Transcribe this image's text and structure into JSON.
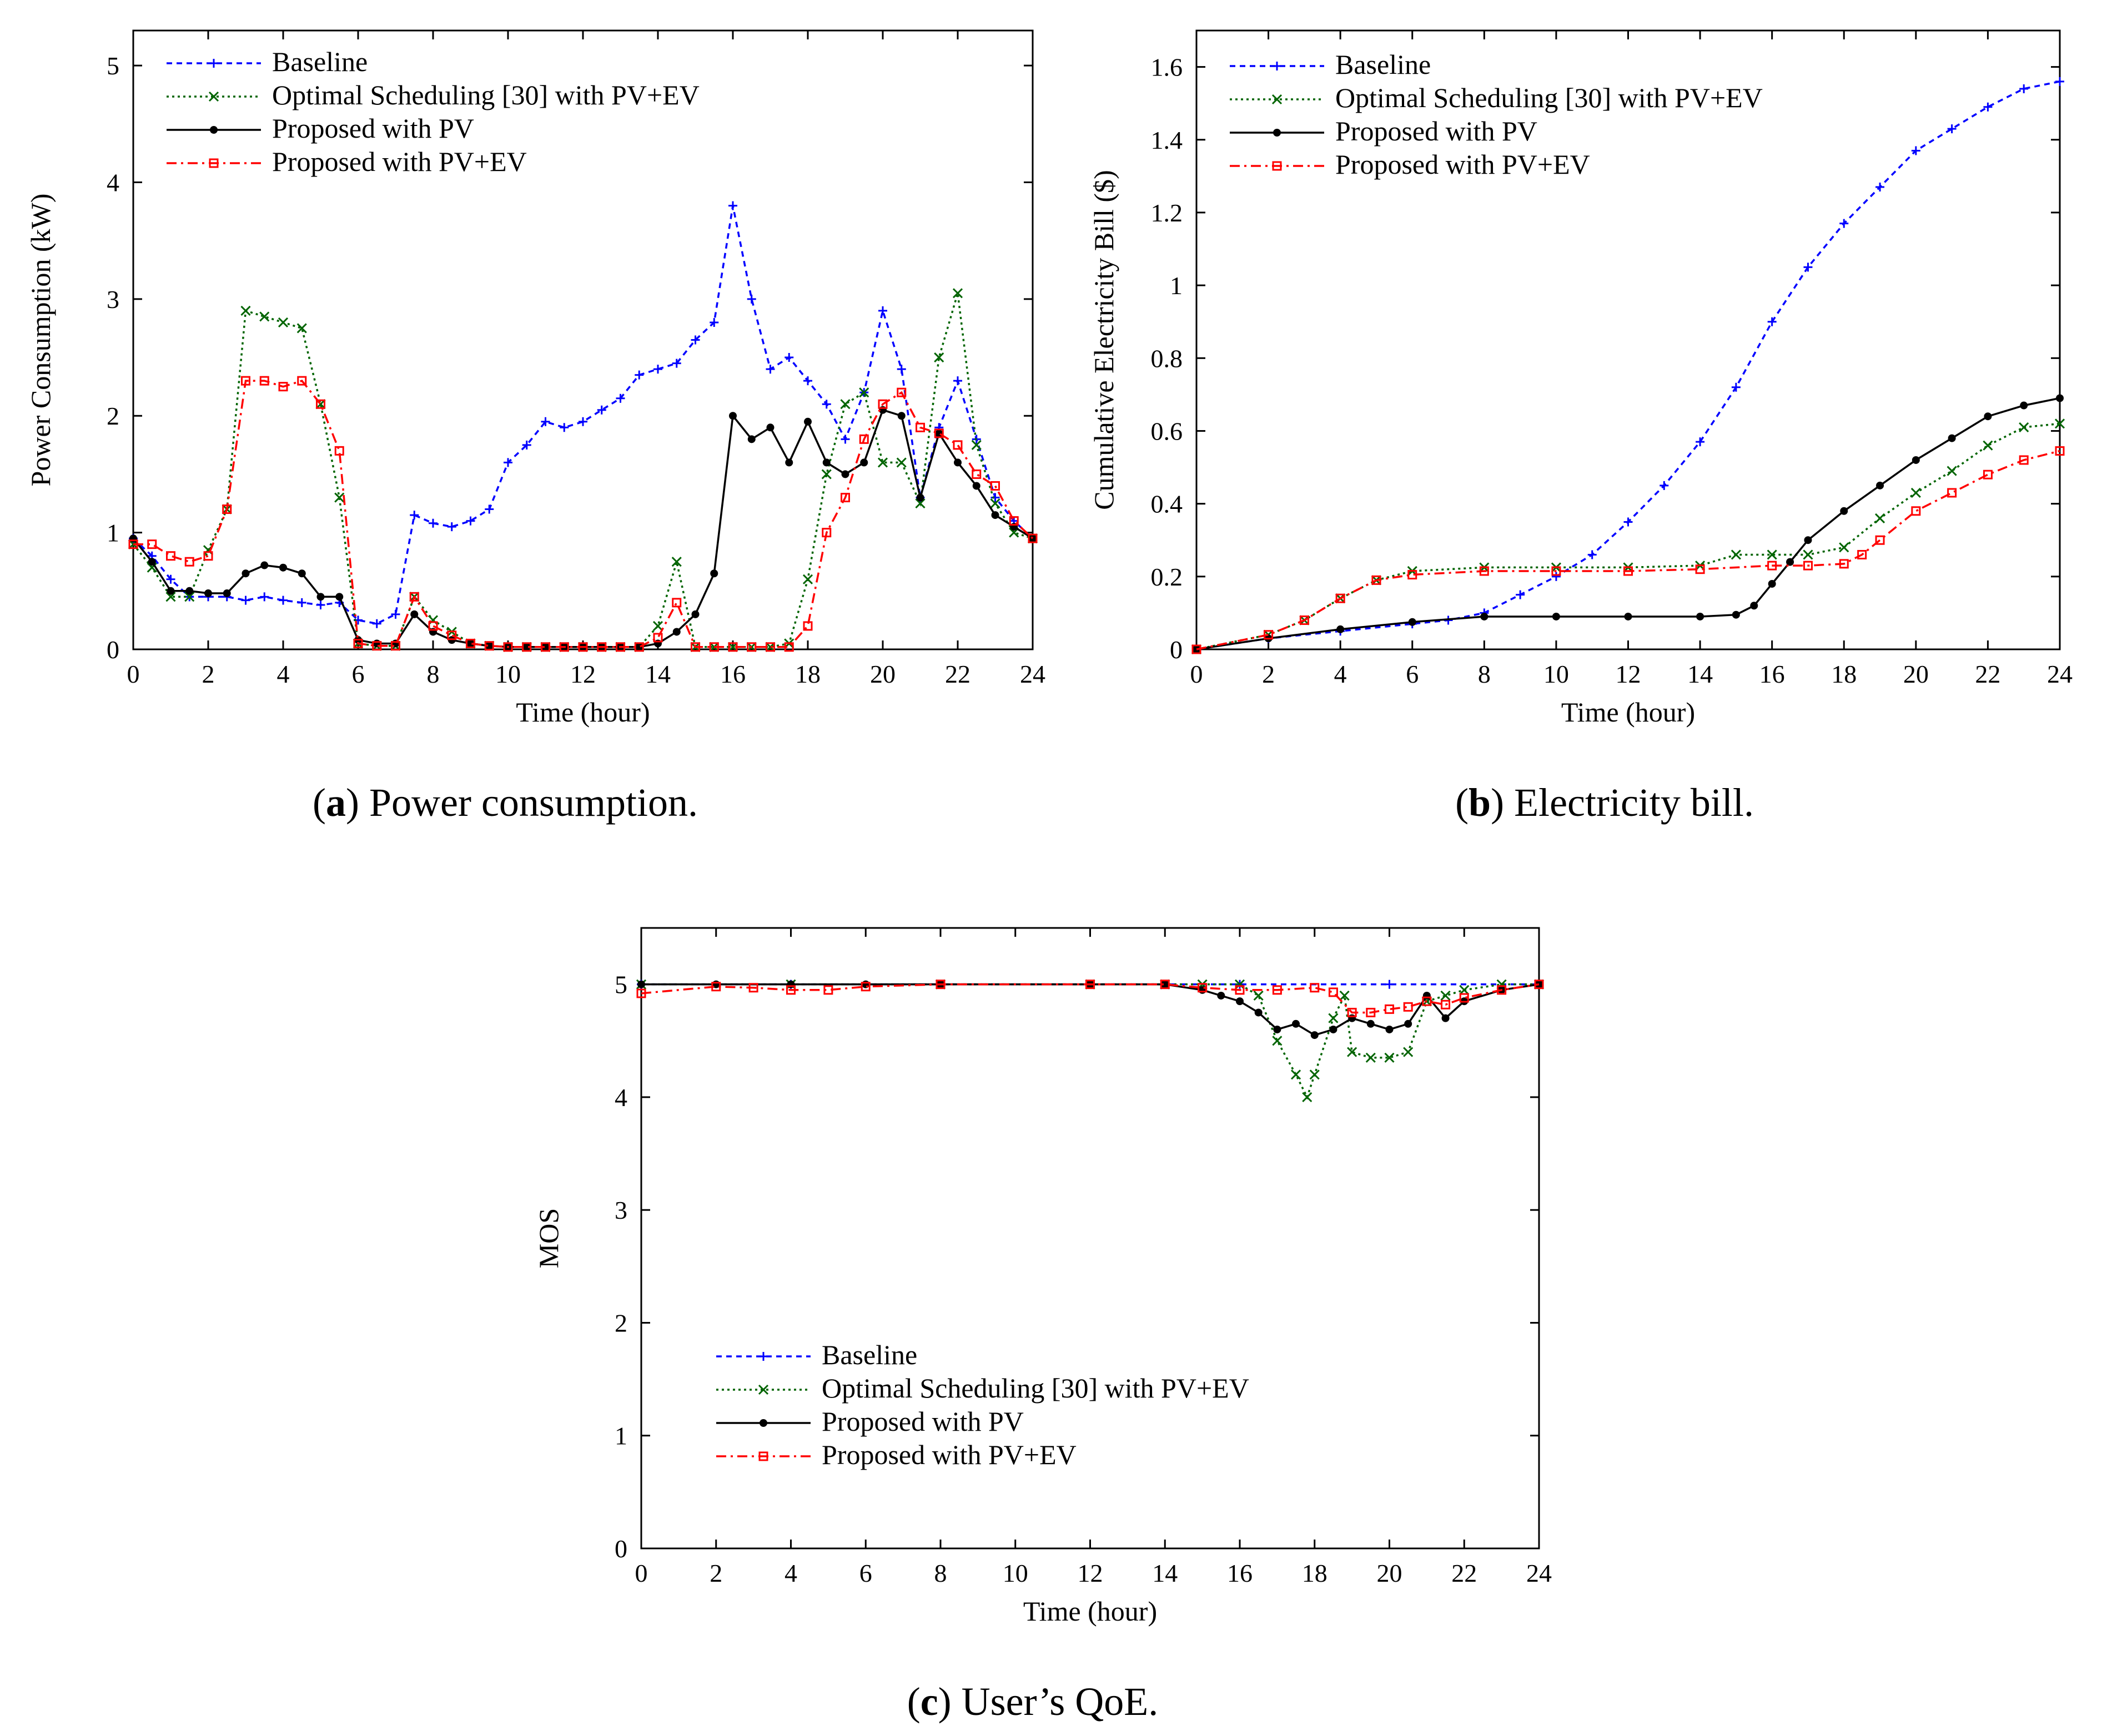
{
  "figure": {
    "captions": [
      {
        "letter": "a",
        "text": " Power consumption.",
        "open": "(",
        "close": ")"
      },
      {
        "letter": "b",
        "text": " Electricity bill.",
        "open": "(",
        "close": ")"
      },
      {
        "letter": "c",
        "text": " User’s QoE.",
        "open": "(",
        "close": ")"
      }
    ]
  },
  "chart_data": [
    {
      "id": "a",
      "type": "line",
      "xlabel": "Time (hour)",
      "ylabel": "Power Consumption (kW)",
      "xlim": [
        0,
        24
      ],
      "ylim": [
        0,
        5.3
      ],
      "xticks": [
        0,
        2,
        4,
        6,
        8,
        10,
        12,
        14,
        16,
        18,
        20,
        22,
        24
      ],
      "yticks": [
        0,
        1,
        2,
        3,
        4,
        5
      ],
      "legend_position": "top-left",
      "series": [
        {
          "name": "Baseline",
          "color": "#0000ff",
          "marker": "plus",
          "x": [
            0,
            0.5,
            1,
            1.5,
            2,
            2.5,
            3,
            3.5,
            4,
            4.5,
            5,
            5.5,
            6,
            6.5,
            7,
            7.5,
            8,
            8.5,
            9,
            9.5,
            10,
            10.5,
            11,
            11.5,
            12,
            12.5,
            13,
            13.5,
            14,
            14.5,
            15,
            15.5,
            16,
            16.5,
            17,
            17.5,
            18,
            18.5,
            19,
            19.5,
            20,
            20.5,
            21,
            21.5,
            22,
            22.5,
            23,
            23.5,
            24
          ],
          "values": [
            0.95,
            0.8,
            0.6,
            0.45,
            0.45,
            0.45,
            0.42,
            0.45,
            0.42,
            0.4,
            0.38,
            0.4,
            0.25,
            0.22,
            0.3,
            1.15,
            1.08,
            1.05,
            1.1,
            1.2,
            1.6,
            1.75,
            1.95,
            1.9,
            1.95,
            2.05,
            2.15,
            2.35,
            2.4,
            2.45,
            2.65,
            2.8,
            3.8,
            3.0,
            2.4,
            2.5,
            2.3,
            2.1,
            1.8,
            2.2,
            2.9,
            2.4,
            1.3,
            1.9,
            2.3,
            1.8,
            1.3,
            1.1,
            0.95
          ]
        },
        {
          "name": "Optimal Scheduling [30] with PV+EV",
          "color": "#006400",
          "marker": "x",
          "x": [
            0,
            0.5,
            1,
            1.5,
            2,
            2.5,
            3,
            3.5,
            4,
            4.5,
            5,
            5.5,
            6,
            6.5,
            7,
            7.5,
            8,
            8.5,
            9,
            9.5,
            10,
            10.5,
            11,
            11.5,
            12,
            12.5,
            13,
            13.5,
            14,
            14.5,
            15,
            15.5,
            16,
            16.5,
            17,
            17.5,
            18,
            18.5,
            19,
            19.5,
            20,
            20.5,
            21,
            21.5,
            22,
            22.5,
            23,
            23.5,
            24
          ],
          "values": [
            0.9,
            0.7,
            0.45,
            0.45,
            0.85,
            1.2,
            2.9,
            2.85,
            2.8,
            2.75,
            2.1,
            1.3,
            0.05,
            0.03,
            0.03,
            0.45,
            0.25,
            0.15,
            0.05,
            0.03,
            0.02,
            0.02,
            0.02,
            0.02,
            0.02,
            0.02,
            0.02,
            0.02,
            0.2,
            0.75,
            0.02,
            0.02,
            0.02,
            0.02,
            0.02,
            0.05,
            0.6,
            1.5,
            2.1,
            2.2,
            1.6,
            1.6,
            1.25,
            2.5,
            3.05,
            1.75,
            1.25,
            1.0,
            0.95
          ]
        },
        {
          "name": "Proposed with PV",
          "color": "#000000",
          "marker": "circle",
          "x": [
            0,
            0.5,
            1,
            1.5,
            2,
            2.5,
            3,
            3.5,
            4,
            4.5,
            5,
            5.5,
            6,
            6.5,
            7,
            7.5,
            8,
            8.5,
            9,
            9.5,
            10,
            10.5,
            11,
            11.5,
            12,
            12.5,
            13,
            13.5,
            14,
            14.5,
            15,
            15.5,
            16,
            16.5,
            17,
            17.5,
            18,
            18.5,
            19,
            19.5,
            20,
            20.5,
            21,
            21.5,
            22,
            22.5,
            23,
            23.5,
            24
          ],
          "values": [
            0.95,
            0.75,
            0.5,
            0.5,
            0.48,
            0.48,
            0.65,
            0.72,
            0.7,
            0.65,
            0.45,
            0.45,
            0.08,
            0.05,
            0.05,
            0.3,
            0.15,
            0.08,
            0.05,
            0.03,
            0.02,
            0.02,
            0.02,
            0.02,
            0.02,
            0.02,
            0.02,
            0.02,
            0.05,
            0.15,
            0.3,
            0.65,
            2.0,
            1.8,
            1.9,
            1.6,
            1.95,
            1.6,
            1.5,
            1.6,
            2.05,
            2.0,
            1.3,
            1.85,
            1.6,
            1.4,
            1.15,
            1.05,
            0.95
          ]
        },
        {
          "name": "Proposed with PV+EV",
          "color": "#ff0000",
          "marker": "square",
          "x": [
            0,
            0.5,
            1,
            1.5,
            2,
            2.5,
            3,
            3.5,
            4,
            4.5,
            5,
            5.5,
            6,
            6.5,
            7,
            7.5,
            8,
            8.5,
            9,
            9.5,
            10,
            10.5,
            11,
            11.5,
            12,
            12.5,
            13,
            13.5,
            14,
            14.5,
            15,
            15.5,
            16,
            16.5,
            17,
            17.5,
            18,
            18.5,
            19,
            19.5,
            20,
            20.5,
            21,
            21.5,
            22,
            22.5,
            23,
            23.5,
            24
          ],
          "values": [
            0.9,
            0.9,
            0.8,
            0.75,
            0.8,
            1.2,
            2.3,
            2.3,
            2.25,
            2.3,
            2.1,
            1.7,
            0.05,
            0.03,
            0.03,
            0.45,
            0.2,
            0.12,
            0.05,
            0.03,
            0.02,
            0.02,
            0.02,
            0.02,
            0.02,
            0.02,
            0.02,
            0.02,
            0.1,
            0.4,
            0.02,
            0.02,
            0.02,
            0.02,
            0.02,
            0.02,
            0.2,
            1.0,
            1.3,
            1.8,
            2.1,
            2.2,
            1.9,
            1.85,
            1.75,
            1.5,
            1.4,
            1.1,
            0.95
          ]
        }
      ]
    },
    {
      "id": "b",
      "type": "line",
      "xlabel": "Time (hour)",
      "ylabel": "Cumulative Electricity Bill ($)",
      "xlim": [
        0,
        24
      ],
      "ylim": [
        0,
        1.7
      ],
      "xticks": [
        0,
        2,
        4,
        6,
        8,
        10,
        12,
        14,
        16,
        18,
        20,
        22,
        24
      ],
      "yticks": [
        0,
        0.2,
        0.4,
        0.6,
        0.8,
        1,
        1.2,
        1.4,
        1.6
      ],
      "legend_position": "top-left",
      "series": [
        {
          "name": "Baseline",
          "color": "#0000ff",
          "marker": "plus",
          "x": [
            0,
            2,
            4,
            6,
            7,
            8,
            9,
            10,
            11,
            12,
            13,
            14,
            15,
            16,
            17,
            18,
            19,
            20,
            21,
            22,
            23,
            24
          ],
          "values": [
            0,
            0.03,
            0.05,
            0.07,
            0.08,
            0.1,
            0.15,
            0.2,
            0.26,
            0.35,
            0.45,
            0.57,
            0.72,
            0.9,
            1.05,
            1.17,
            1.27,
            1.37,
            1.43,
            1.49,
            1.54,
            1.56
          ]
        },
        {
          "name": "Optimal Scheduling [30] with PV+EV",
          "color": "#006400",
          "marker": "x",
          "x": [
            0,
            2,
            3,
            4,
            5,
            6,
            8,
            10,
            12,
            14,
            15,
            16,
            17,
            18,
            19,
            20,
            21,
            22,
            23,
            24
          ],
          "values": [
            0,
            0.04,
            0.08,
            0.14,
            0.19,
            0.215,
            0.225,
            0.225,
            0.225,
            0.23,
            0.26,
            0.26,
            0.26,
            0.28,
            0.36,
            0.43,
            0.49,
            0.56,
            0.61,
            0.62
          ]
        },
        {
          "name": "Proposed with PV",
          "color": "#000000",
          "marker": "circle",
          "x": [
            0,
            2,
            4,
            6,
            8,
            10,
            12,
            14,
            15,
            15.5,
            16,
            16.5,
            17,
            18,
            19,
            20,
            21,
            22,
            23,
            24
          ],
          "values": [
            0,
            0.03,
            0.055,
            0.075,
            0.09,
            0.09,
            0.09,
            0.09,
            0.095,
            0.12,
            0.18,
            0.24,
            0.3,
            0.38,
            0.45,
            0.52,
            0.58,
            0.64,
            0.67,
            0.69
          ]
        },
        {
          "name": "Proposed with PV+EV",
          "color": "#ff0000",
          "marker": "square",
          "x": [
            0,
            2,
            3,
            4,
            5,
            6,
            8,
            10,
            12,
            14,
            16,
            17,
            18,
            18.5,
            19,
            20,
            21,
            22,
            23,
            24
          ],
          "values": [
            0,
            0.04,
            0.08,
            0.14,
            0.19,
            0.205,
            0.215,
            0.215,
            0.215,
            0.22,
            0.23,
            0.23,
            0.235,
            0.26,
            0.3,
            0.38,
            0.43,
            0.48,
            0.52,
            0.545
          ]
        }
      ]
    },
    {
      "id": "c",
      "type": "line",
      "xlabel": "Time (hour)",
      "ylabel": "MOS",
      "xlim": [
        0,
        24
      ],
      "ylim": [
        0,
        5.5
      ],
      "xticks": [
        0,
        2,
        4,
        6,
        8,
        10,
        12,
        14,
        16,
        18,
        20,
        22,
        24
      ],
      "yticks": [
        0,
        1,
        2,
        3,
        4,
        5
      ],
      "legend_position": "bottom-left",
      "series": [
        {
          "name": "Baseline",
          "color": "#0000ff",
          "marker": "plus",
          "x": [
            0,
            4,
            8,
            12,
            16,
            20,
            24
          ],
          "values": [
            5,
            5,
            5,
            5,
            5,
            5,
            5
          ]
        },
        {
          "name": "Optimal Scheduling [30] with PV+EV",
          "color": "#006400",
          "marker": "x",
          "x": [
            0,
            4,
            8,
            12,
            14,
            15,
            16,
            16.5,
            17,
            17.5,
            17.8,
            18,
            18.5,
            18.8,
            19,
            19.5,
            20,
            20.5,
            21,
            21.5,
            22,
            23,
            24
          ],
          "values": [
            5,
            5,
            5,
            5,
            5,
            5,
            5,
            4.9,
            4.5,
            4.2,
            4.0,
            4.2,
            4.7,
            4.9,
            4.4,
            4.35,
            4.35,
            4.4,
            4.85,
            4.9,
            4.95,
            5,
            5
          ]
        },
        {
          "name": "Proposed with PV",
          "color": "#000000",
          "marker": "circle",
          "x": [
            0,
            2,
            4,
            6,
            8,
            12,
            14,
            15,
            15.5,
            16,
            16.5,
            17,
            17.5,
            18,
            18.5,
            19,
            19.5,
            20,
            20.5,
            21,
            21.5,
            22,
            23,
            24
          ],
          "values": [
            5,
            5,
            5,
            5,
            5,
            5,
            5,
            4.95,
            4.9,
            4.85,
            4.75,
            4.6,
            4.65,
            4.55,
            4.6,
            4.7,
            4.65,
            4.6,
            4.65,
            4.9,
            4.7,
            4.85,
            4.95,
            5
          ]
        },
        {
          "name": "Proposed with PV+EV",
          "color": "#ff0000",
          "marker": "square",
          "x": [
            0,
            2,
            3,
            4,
            5,
            6,
            8,
            12,
            14,
            15,
            16,
            17,
            18,
            18.5,
            19,
            19.5,
            20,
            20.5,
            21,
            21.5,
            22,
            23,
            24
          ],
          "values": [
            4.92,
            4.98,
            4.97,
            4.95,
            4.95,
            4.98,
            5,
            5,
            5,
            4.97,
            4.95,
            4.95,
            4.97,
            4.93,
            4.75,
            4.75,
            4.78,
            4.8,
            4.85,
            4.82,
            4.88,
            4.95,
            5
          ]
        }
      ]
    }
  ]
}
